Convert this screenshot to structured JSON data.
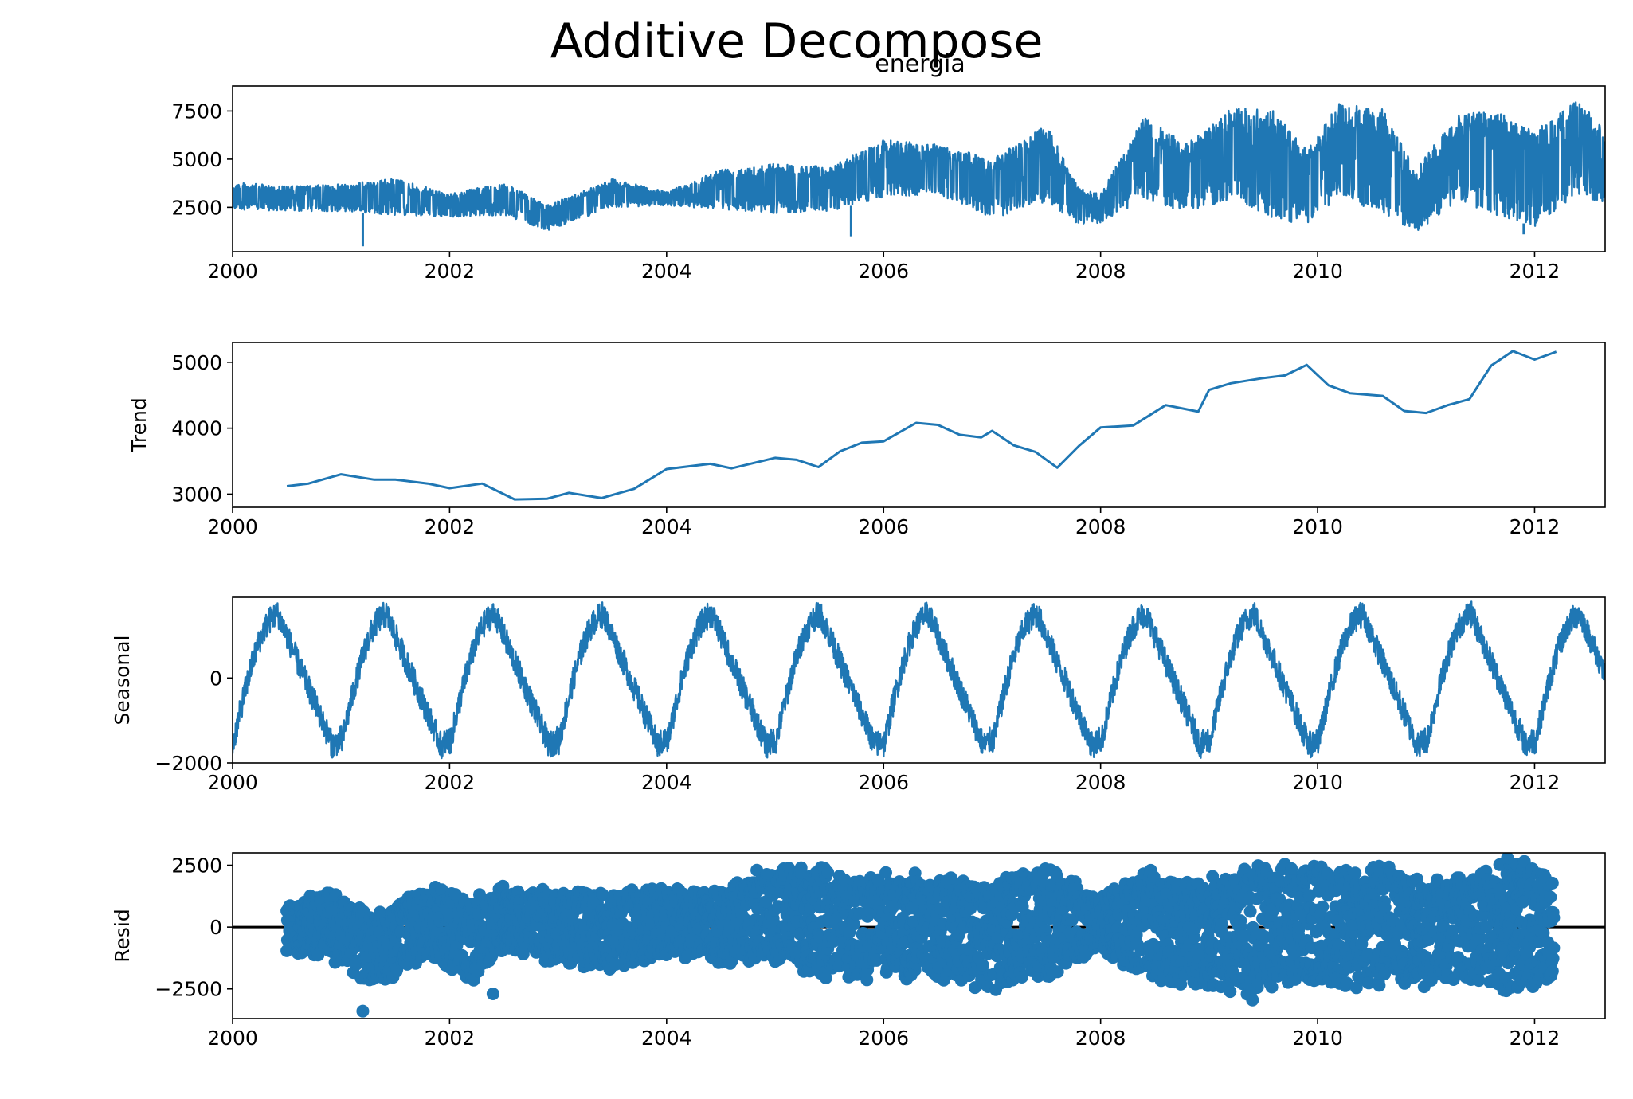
{
  "chart_data": {
    "type": "line",
    "title": "Additive Decompose",
    "color": "#1f77b4",
    "xlim": [
      2000.0,
      2012.65
    ],
    "xticks": [
      2000,
      2002,
      2004,
      2006,
      2008,
      2010,
      2012
    ],
    "xtick_labels": [
      "2000",
      "2002",
      "2004",
      "2006",
      "2008",
      "2010",
      "2012"
    ],
    "grid": false,
    "panels": [
      {
        "key": "observed",
        "type": "line",
        "title": "energia",
        "ylabel": "",
        "ylim": [
          200,
          8800
        ],
        "yticks": [
          2500,
          5000,
          7500
        ],
        "ytick_labels": [
          "2500",
          "5000",
          "7500"
        ],
        "envelope": {
          "x": [
            2000.0,
            2000.5,
            2001.0,
            2001.5,
            2002.0,
            2002.5,
            2002.9,
            2003.5,
            2004.0,
            2004.5,
            2005.0,
            2005.5,
            2006.0,
            2006.5,
            2007.0,
            2007.5,
            2007.8,
            2008.0,
            2008.4,
            2008.8,
            2009.2,
            2009.6,
            2009.9,
            2010.2,
            2010.6,
            2010.9,
            2011.3,
            2011.7,
            2012.0,
            2012.4,
            2012.65
          ],
          "low": [
            2400,
            2300,
            2300,
            2100,
            2000,
            2100,
            1300,
            2500,
            2600,
            2400,
            2200,
            2300,
            3000,
            3200,
            1900,
            2800,
            1600,
            1700,
            2900,
            2200,
            2900,
            1800,
            1600,
            3000,
            2200,
            1200,
            2800,
            2000,
            1500,
            3200,
            2500
          ],
          "high": [
            3800,
            3600,
            3700,
            4000,
            3200,
            3800,
            2600,
            4000,
            3300,
            4500,
            4800,
            4600,
            6000,
            5800,
            5000,
            6800,
            3500,
            3200,
            7200,
            5800,
            7700,
            7500,
            5500,
            7900,
            7600,
            4500,
            7400,
            7500,
            6500,
            8100,
            6500
          ]
        },
        "outliers": [
          {
            "x": 2001.2,
            "y": 480
          },
          {
            "x": 2005.7,
            "y": 1000
          },
          {
            "x": 2011.9,
            "y": 1100
          }
        ]
      },
      {
        "key": "trend",
        "type": "line",
        "ylabel": "Trend",
        "ylim": [
          2800,
          5300
        ],
        "yticks": [
          3000,
          4000,
          5000
        ],
        "ytick_labels": [
          "3000",
          "4000",
          "5000"
        ],
        "x": [
          2000.5,
          2000.7,
          2001.0,
          2001.3,
          2001.5,
          2001.8,
          2002.0,
          2002.3,
          2002.6,
          2002.9,
          2003.1,
          2003.4,
          2003.7,
          2004.0,
          2004.4,
          2004.6,
          2005.0,
          2005.2,
          2005.4,
          2005.6,
          2005.8,
          2006.0,
          2006.3,
          2006.5,
          2006.7,
          2006.9,
          2007.0,
          2007.2,
          2007.4,
          2007.6,
          2007.8,
          2008.0,
          2008.3,
          2008.6,
          2008.9,
          2009.0,
          2009.2,
          2009.5,
          2009.7,
          2009.9,
          2010.1,
          2010.3,
          2010.6,
          2010.8,
          2011.0,
          2011.2,
          2011.4,
          2011.6,
          2011.8,
          2012.0,
          2012.2
        ],
        "y": [
          3120,
          3160,
          3300,
          3220,
          3220,
          3160,
          3090,
          3160,
          2920,
          2930,
          3020,
          2940,
          3080,
          3380,
          3460,
          3390,
          3550,
          3520,
          3410,
          3650,
          3780,
          3800,
          4080,
          4050,
          3900,
          3860,
          3960,
          3740,
          3640,
          3400,
          3730,
          4010,
          4040,
          4350,
          4250,
          4580,
          4680,
          4760,
          4800,
          4960,
          4650,
          4530,
          4490,
          4260,
          4230,
          4350,
          4440,
          4950,
          5170,
          5040,
          5160
        ]
      },
      {
        "key": "seasonal",
        "type": "line",
        "ylabel": "Seasonal",
        "ylim": [
          -2000,
          1900
        ],
        "yticks": [
          -2000,
          0
        ],
        "ytick_labels": [
          "−2000",
          "0"
        ],
        "period": 1.0,
        "peak": 1750,
        "trough": -1850,
        "noise_amplitude": 520
      },
      {
        "key": "resid",
        "type": "scatter",
        "ylabel": "Resid",
        "ylim": [
          -3700,
          3000
        ],
        "yticks": [
          -2500,
          0,
          2500
        ],
        "ytick_labels": [
          "−2500",
          "0",
          "2500"
        ],
        "x_start": 2000.5,
        "x_end": 2012.18,
        "envelope": {
          "x": [
            2000.5,
            2001.0,
            2001.3,
            2001.8,
            2002.2,
            2002.5,
            2003.0,
            2003.5,
            2004.0,
            2004.5,
            2004.9,
            2005.5,
            2006.0,
            2006.5,
            2007.0,
            2007.5,
            2008.0,
            2008.4,
            2008.9,
            2009.4,
            2009.8,
            2010.2,
            2010.6,
            2011.0,
            2011.5,
            2011.8,
            2012.18
          ],
          "low": [
            -1000,
            -1500,
            -2500,
            -1200,
            -2300,
            -1000,
            -1500,
            -1800,
            -1200,
            -1500,
            -1500,
            -2200,
            -2100,
            -2200,
            -2800,
            -2100,
            -1000,
            -2300,
            -2500,
            -2800,
            -2300,
            -2600,
            -2400,
            -2500,
            -2300,
            -2700,
            -2400
          ],
          "high": [
            1000,
            1700,
            500,
            1800,
            1200,
            1700,
            1500,
            1500,
            1700,
            1500,
            2600,
            2400,
            2300,
            2200,
            2000,
            2600,
            1200,
            2400,
            2000,
            2600,
            2600,
            2400,
            2600,
            1800,
            2400,
            2800,
            2500
          ]
        },
        "outliers": [
          {
            "x": 2001.2,
            "y": -3400
          },
          {
            "x": 2002.4,
            "y": -2700
          },
          {
            "x": 2009.4,
            "y": -2950
          },
          {
            "x": 2011.75,
            "y": 2800
          }
        ]
      }
    ]
  }
}
